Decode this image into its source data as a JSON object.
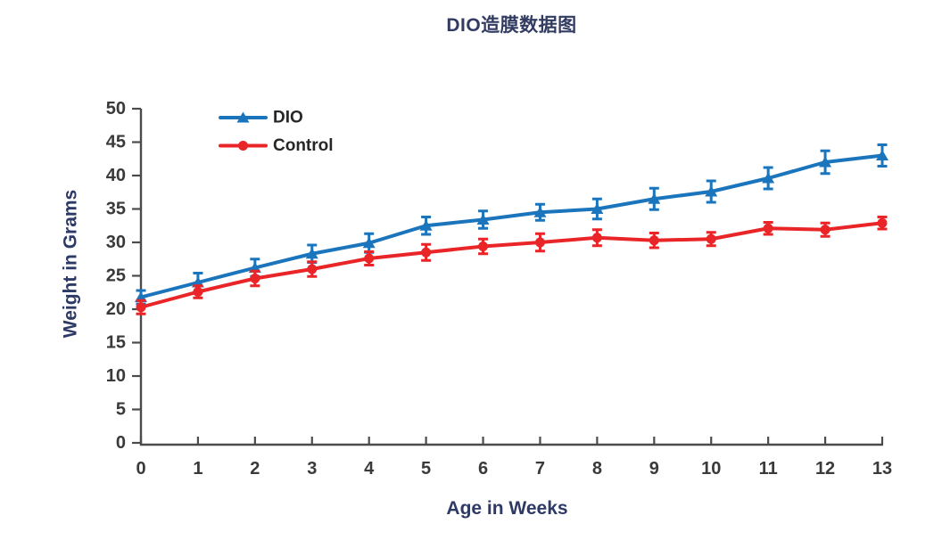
{
  "title": "DIO造膜数据图",
  "colors": {
    "title": "#323B61",
    "axis_label": "#2E3A66",
    "tick_label": "#3A3A3A",
    "axis_line": "#4B4B4B",
    "legend_text": "#262626",
    "background": "#FFFFFF",
    "dio": "#1B75BC",
    "control": "#E92528"
  },
  "chart_data": {
    "type": "line",
    "title": "DIO造膜数据图",
    "xlabel": "Age in Weeks",
    "ylabel": "Weight in Grams",
    "x": [
      0,
      1,
      2,
      3,
      4,
      5,
      6,
      7,
      8,
      9,
      10,
      11,
      12,
      13
    ],
    "xlim": [
      0,
      13
    ],
    "ylim": [
      0,
      50
    ],
    "ytick_step": 5,
    "grid": false,
    "error_bars": true,
    "legend_position": "inside top-left",
    "series": [
      {
        "name": "DIO",
        "marker": "triangle",
        "color": "#1B75BC",
        "values": [
          21.8,
          24.0,
          26.2,
          28.3,
          29.9,
          32.5,
          33.4,
          34.5,
          35.0,
          36.5,
          37.6,
          39.6,
          42.0,
          43.0
        ],
        "errors": [
          1.0,
          1.4,
          1.3,
          1.3,
          1.4,
          1.3,
          1.3,
          1.2,
          1.5,
          1.6,
          1.6,
          1.6,
          1.7,
          1.6
        ]
      },
      {
        "name": "Control",
        "marker": "circle",
        "color": "#E92528",
        "values": [
          20.3,
          22.6,
          24.6,
          26.0,
          27.6,
          28.5,
          29.4,
          30.0,
          30.7,
          30.3,
          30.5,
          32.1,
          31.9,
          32.9
        ],
        "errors": [
          1.0,
          0.9,
          1.1,
          1.1,
          1.0,
          1.2,
          1.1,
          1.3,
          1.2,
          1.1,
          1.0,
          0.9,
          1.0,
          0.9
        ]
      }
    ]
  }
}
